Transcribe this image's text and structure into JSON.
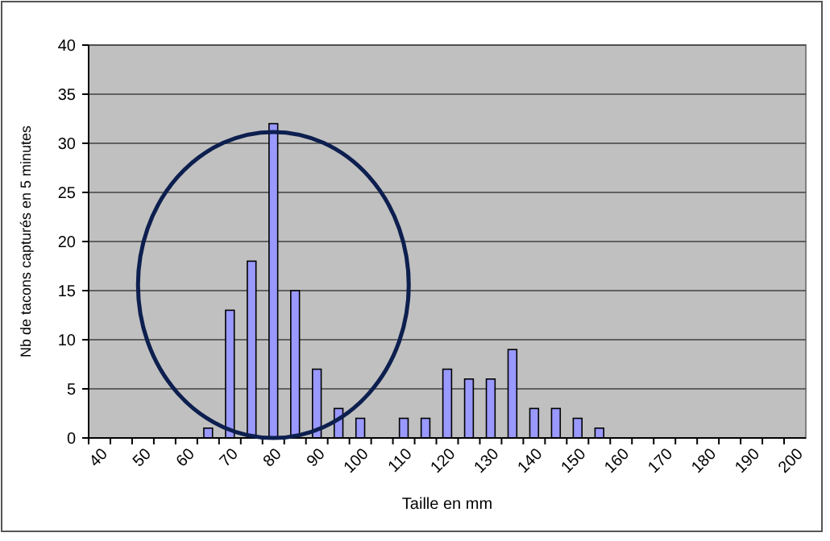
{
  "chart_data": {
    "type": "bar",
    "xlabel": "Taille en mm",
    "ylabel": "Nb de tacons capturés en 5 minutes",
    "categories": [
      "40",
      null,
      "50",
      null,
      "60",
      null,
      "70",
      null,
      "80",
      null,
      "90",
      null,
      "100",
      null,
      "110",
      null,
      "120",
      null,
      "130",
      null,
      "140",
      null,
      "150",
      null,
      "160",
      null,
      "170",
      null,
      "180",
      null,
      "190",
      null,
      "200"
    ],
    "values": [
      null,
      null,
      null,
      null,
      null,
      1,
      13,
      18,
      32,
      15,
      7,
      3,
      2,
      null,
      2,
      2,
      7,
      6,
      6,
      9,
      3,
      3,
      2,
      1,
      null,
      null,
      null,
      null,
      null,
      null,
      null,
      null,
      null
    ],
    "color": "#9999ff",
    "ylim": [
      0,
      40
    ],
    "yticks": [
      0,
      5,
      10,
      15,
      20,
      25,
      30,
      35,
      40
    ],
    "grid": "y"
  }
}
